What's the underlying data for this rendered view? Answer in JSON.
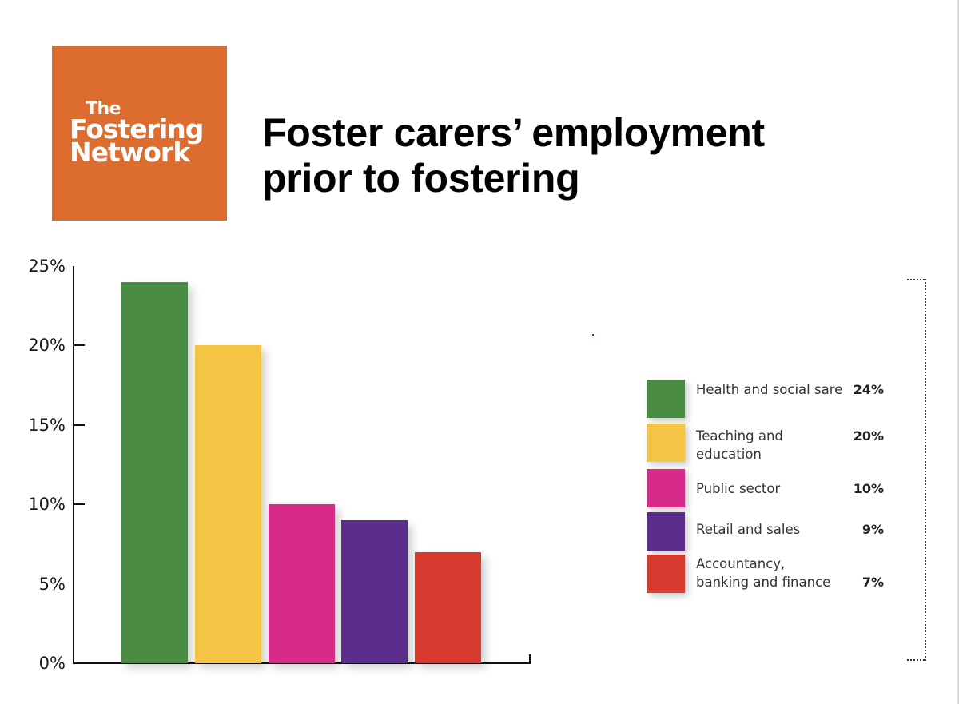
{
  "logo": {
    "line1": "The",
    "line2": "Fostering",
    "line3": "Network",
    "background_color": "#dc6d2e"
  },
  "title": {
    "line1": "Foster carers’ employment",
    "line2": "prior to fostering"
  },
  "y_axis": {
    "ticks": [
      "0%",
      "5%",
      "10%",
      "15%",
      "20%",
      "25%"
    ]
  },
  "legend": {
    "items": [
      {
        "label": "Health and social sare",
        "value": "24%",
        "color": "#4a8c44"
      },
      {
        "label": "Teaching and education",
        "value": "20%",
        "color": "#f4c444"
      },
      {
        "label": "Public sector",
        "value": "10%",
        "color": "#d72b8a"
      },
      {
        "label": "Retail and sales",
        "value": "9%",
        "color": "#5b2d8a"
      },
      {
        "label_line1": "Accountancy,",
        "label_line2": "banking and finance",
        "label": "Accountancy, banking and finance",
        "value": "7%",
        "color": "#d93a30"
      }
    ]
  },
  "chart_data": {
    "type": "bar",
    "title": "Foster carers’ employment prior to fostering",
    "categories": [
      "Health and social sare",
      "Teaching and education",
      "Public sector",
      "Retail and sales",
      "Accountancy, banking and finance"
    ],
    "values": [
      24,
      20,
      10,
      9,
      7
    ],
    "colors": [
      "#4a8c44",
      "#f4c444",
      "#d72b8a",
      "#5b2d8a",
      "#d93a30"
    ],
    "xlabel": "",
    "ylabel": "",
    "ylim": [
      0,
      25
    ],
    "yticks": [
      "0%",
      "5%",
      "10%",
      "15%",
      "20%",
      "25%"
    ],
    "grid": false,
    "legend_position": "right",
    "unit": "%"
  }
}
